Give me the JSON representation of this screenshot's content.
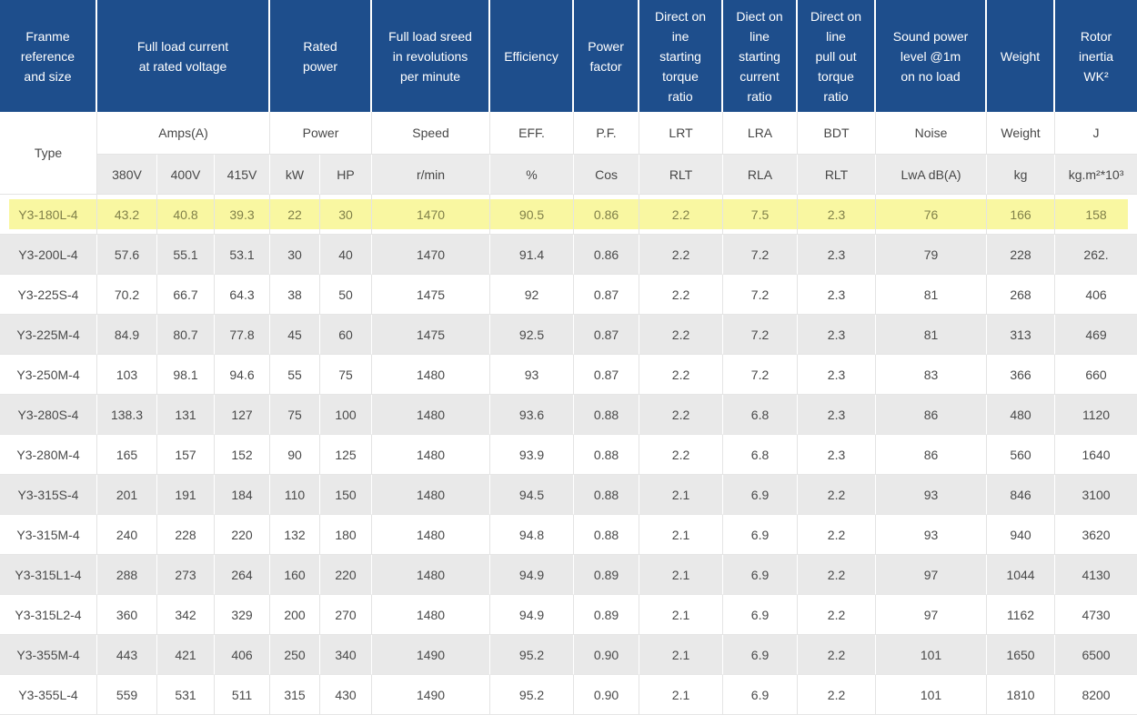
{
  "colors": {
    "header_bg": "#1e4e8c",
    "header_text": "#ffffff",
    "unit_bg": "#ebebeb",
    "stripe_bg": "#e9e9e9",
    "highlight_bg": "#f9f7a1",
    "highlight_text": "#80804a",
    "body_text": "#4a4a4a"
  },
  "table": {
    "group_header": [
      {
        "label": "Franme\nreference\nand size",
        "colspan": 1
      },
      {
        "label": "Full load current\nat rated voltage",
        "colspan": 3
      },
      {
        "label": "Rated\npower",
        "colspan": 2
      },
      {
        "label": "Full load sreed\nin revolutions\nper minute",
        "colspan": 1
      },
      {
        "label": "Efficiency",
        "colspan": 1
      },
      {
        "label": "Power\nfactor",
        "colspan": 1
      },
      {
        "label": "Direct on\nine\nstarting\ntorque\nratio",
        "colspan": 1
      },
      {
        "label": "Diect on\nline\nstarting\ncurrent\nratio",
        "colspan": 1
      },
      {
        "label": "Direct on\nline\npull out\ntorque\nratio",
        "colspan": 1
      },
      {
        "label": "Sound power\nlevel @1m\non no load",
        "colspan": 1
      },
      {
        "label": "Weight",
        "colspan": 1
      },
      {
        "label": "Rotor\ninertia\nWK²",
        "colspan": 1
      }
    ],
    "sub_header": {
      "type_label": "Type",
      "cells": [
        "Amps(A)",
        "Power",
        "Speed",
        "EFF.",
        "P.F.",
        "LRT",
        "LRA",
        "BDT",
        "Noise",
        "Weight",
        "J"
      ]
    },
    "unit_row": [
      "380V",
      "400V",
      "415V",
      "kW",
      "HP",
      "r/min",
      "%",
      "Cos",
      "RLT",
      "RLA",
      "RLT",
      "LwA dB(A)",
      "kg",
      "kg.m²*10³"
    ],
    "rows": [
      {
        "highlight": true,
        "cells": [
          "Y3-180L-4",
          "43.2",
          "40.8",
          "39.3",
          "22",
          "30",
          "1470",
          "90.5",
          "0.86",
          "2.2",
          "7.5",
          "2.3",
          "76",
          "166",
          "158"
        ]
      },
      {
        "highlight": false,
        "cells": [
          "Y3-200L-4",
          "57.6",
          "55.1",
          "53.1",
          "30",
          "40",
          "1470",
          "91.4",
          "0.86",
          "2.2",
          "7.2",
          "2.3",
          "79",
          "228",
          "262."
        ]
      },
      {
        "highlight": false,
        "cells": [
          "Y3-225S-4",
          "70.2",
          "66.7",
          "64.3",
          "38",
          "50",
          "1475",
          "92",
          "0.87",
          "2.2",
          "7.2",
          "2.3",
          "81",
          "268",
          "406"
        ]
      },
      {
        "highlight": false,
        "cells": [
          "Y3-225M-4",
          "84.9",
          "80.7",
          "77.8",
          "45",
          "60",
          "1475",
          "92.5",
          "0.87",
          "2.2",
          "7.2",
          "2.3",
          "81",
          "313",
          "469"
        ]
      },
      {
        "highlight": false,
        "cells": [
          "Y3-250M-4",
          "103",
          "98.1",
          "94.6",
          "55",
          "75",
          "1480",
          "93",
          "0.87",
          "2.2",
          "7.2",
          "2.3",
          "83",
          "366",
          "660"
        ]
      },
      {
        "highlight": false,
        "cells": [
          "Y3-280S-4",
          "138.3",
          "131",
          "127",
          "75",
          "100",
          "1480",
          "93.6",
          "0.88",
          "2.2",
          "6.8",
          "2.3",
          "86",
          "480",
          "1120"
        ]
      },
      {
        "highlight": false,
        "cells": [
          "Y3-280M-4",
          "165",
          "157",
          "152",
          "90",
          "125",
          "1480",
          "93.9",
          "0.88",
          "2.2",
          "6.8",
          "2.3",
          "86",
          "560",
          "1640"
        ]
      },
      {
        "highlight": false,
        "cells": [
          "Y3-315S-4",
          "201",
          "191",
          "184",
          "110",
          "150",
          "1480",
          "94.5",
          "0.88",
          "2.1",
          "6.9",
          "2.2",
          "93",
          "846",
          "3100"
        ]
      },
      {
        "highlight": false,
        "cells": [
          "Y3-315M-4",
          "240",
          "228",
          "220",
          "132",
          "180",
          "1480",
          "94.8",
          "0.88",
          "2.1",
          "6.9",
          "2.2",
          "93",
          "940",
          "3620"
        ]
      },
      {
        "highlight": false,
        "cells": [
          "Y3-315L1-4",
          "288",
          "273",
          "264",
          "160",
          "220",
          "1480",
          "94.9",
          "0.89",
          "2.1",
          "6.9",
          "2.2",
          "97",
          "1044",
          "4130"
        ]
      },
      {
        "highlight": false,
        "cells": [
          "Y3-315L2-4",
          "360",
          "342",
          "329",
          "200",
          "270",
          "1480",
          "94.9",
          "0.89",
          "2.1",
          "6.9",
          "2.2",
          "97",
          "1162",
          "4730"
        ]
      },
      {
        "highlight": false,
        "cells": [
          "Y3-355M-4",
          "443",
          "421",
          "406",
          "250",
          "340",
          "1490",
          "95.2",
          "0.90",
          "2.1",
          "6.9",
          "2.2",
          "101",
          "1650",
          "6500"
        ]
      },
      {
        "highlight": false,
        "cells": [
          "Y3-355L-4",
          "559",
          "531",
          "511",
          "315",
          "430",
          "1490",
          "95.2",
          "0.90",
          "2.1",
          "6.9",
          "2.2",
          "101",
          "1810",
          "8200"
        ]
      }
    ]
  }
}
